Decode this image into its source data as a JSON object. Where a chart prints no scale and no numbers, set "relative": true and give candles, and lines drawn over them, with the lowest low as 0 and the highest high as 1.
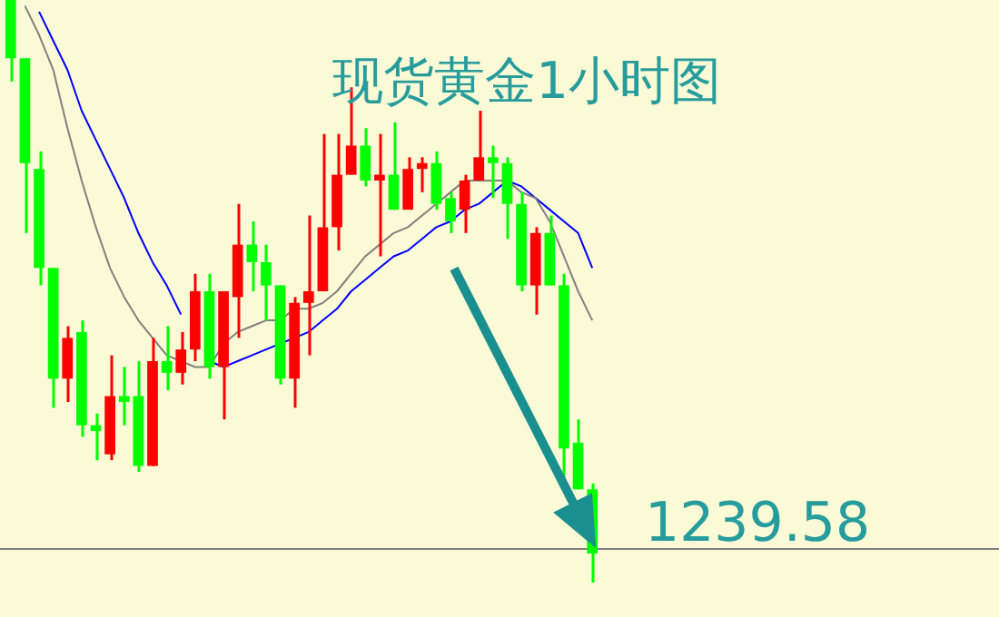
{
  "chart_data": {
    "type": "candlestick",
    "title": "现货黄金1小时图",
    "relative": true,
    "categories": [
      null,
      null,
      null,
      null,
      null,
      null,
      null,
      null,
      null,
      null,
      null,
      null,
      null,
      null,
      null,
      null,
      null,
      null,
      null,
      null,
      null,
      null,
      null,
      null,
      null,
      null,
      null,
      null,
      null,
      null,
      null,
      null,
      null,
      null,
      null,
      null,
      null,
      null,
      null,
      null,
      null,
      null
    ],
    "ohlc": [
      [
        1.0,
        1.0,
        0.86,
        0.9
      ],
      [
        0.9,
        0.9,
        0.6,
        0.72
      ],
      [
        0.71,
        0.74,
        0.51,
        0.54
      ],
      [
        0.54,
        0.54,
        0.3,
        0.35
      ],
      [
        0.35,
        0.44,
        0.31,
        0.42
      ],
      [
        0.43,
        0.45,
        0.25,
        0.27
      ],
      [
        0.27,
        0.29,
        0.21,
        0.26
      ],
      [
        0.22,
        0.39,
        0.21,
        0.32
      ],
      [
        0.32,
        0.37,
        0.27,
        0.31
      ],
      [
        0.32,
        0.38,
        0.19,
        0.2
      ],
      [
        0.2,
        0.42,
        0.2,
        0.38
      ],
      [
        0.38,
        0.44,
        0.33,
        0.36
      ],
      [
        0.36,
        0.43,
        0.34,
        0.4
      ],
      [
        0.4,
        0.53,
        0.38,
        0.5
      ],
      [
        0.5,
        0.53,
        0.35,
        0.37
      ],
      [
        0.37,
        0.5,
        0.28,
        0.5
      ],
      [
        0.49,
        0.65,
        0.42,
        0.58
      ],
      [
        0.58,
        0.62,
        0.5,
        0.55
      ],
      [
        0.55,
        0.58,
        0.45,
        0.51
      ],
      [
        0.51,
        0.51,
        0.34,
        0.35
      ],
      [
        0.35,
        0.49,
        0.3,
        0.48
      ],
      [
        0.48,
        0.63,
        0.39,
        0.5
      ],
      [
        0.5,
        0.77,
        0.5,
        0.61
      ],
      [
        0.61,
        0.77,
        0.57,
        0.7
      ],
      [
        0.7,
        0.85,
        0.7,
        0.75
      ],
      [
        0.75,
        0.78,
        0.68,
        0.69
      ],
      [
        0.69,
        0.77,
        0.56,
        0.7
      ],
      [
        0.7,
        0.79,
        0.64,
        0.64
      ],
      [
        0.64,
        0.73,
        0.64,
        0.71
      ],
      [
        0.71,
        0.73,
        0.67,
        0.72
      ],
      [
        0.72,
        0.74,
        0.64,
        0.65
      ],
      [
        0.66,
        0.67,
        0.6,
        0.62
      ],
      [
        0.64,
        0.7,
        0.6,
        0.69
      ],
      [
        0.69,
        0.81,
        0.69,
        0.73
      ],
      [
        0.73,
        0.75,
        0.66,
        0.72
      ],
      [
        0.72,
        0.73,
        0.59,
        0.65
      ],
      [
        0.65,
        0.67,
        0.5,
        0.51
      ],
      [
        0.51,
        0.61,
        0.46,
        0.6
      ],
      [
        0.6,
        0.63,
        0.51,
        0.51
      ],
      [
        0.51,
        0.53,
        0.18,
        0.23
      ],
      [
        0.24,
        0.28,
        0.16,
        0.16
      ],
      [
        0.16,
        0.17,
        0.0,
        0.05
      ]
    ],
    "colors": [
      "#00ff00",
      "#00ff00",
      "#00ff00",
      "#00ff00",
      "#ff0000",
      "#00ff00",
      "#00ff00",
      "#ff0000",
      "#00ff00",
      "#00ff00",
      "#ff0000",
      "#00ff00",
      "#ff0000",
      "#ff0000",
      "#00ff00",
      "#ff0000",
      "#ff0000",
      "#00ff00",
      "#00ff00",
      "#00ff00",
      "#ff0000",
      "#ff0000",
      "#ff0000",
      "#ff0000",
      "#ff0000",
      "#00ff00",
      "#ff0000",
      "#00ff00",
      "#ff0000",
      "#ff0000",
      "#00ff00",
      "#00ff00",
      "#ff0000",
      "#ff0000",
      "#00ff00",
      "#00ff00",
      "#00ff00",
      "#ff0000",
      "#00ff00",
      "#00ff00",
      "#00ff00",
      "#00ff00"
    ],
    "series": [
      {
        "type": "line",
        "color": "#808080",
        "values": [
          null,
          0.99,
          0.94,
          0.88,
          0.78,
          0.69,
          0.61,
          0.54,
          0.49,
          0.45,
          0.42,
          0.39,
          0.38,
          0.37,
          0.37,
          0.41,
          0.43,
          0.44,
          0.45,
          0.45,
          0.47,
          0.47,
          0.48,
          0.5,
          0.53,
          0.56,
          0.58,
          0.6,
          0.61,
          0.63,
          0.65,
          0.67,
          0.69,
          0.69,
          0.69,
          0.69,
          0.67,
          0.66,
          0.62,
          0.56,
          0.5,
          0.45
        ]
      },
      {
        "type": "line",
        "color": "#0000ff",
        "values": [
          null,
          null,
          0.98,
          0.93,
          0.88,
          0.81,
          0.76,
          0.71,
          0.66,
          0.6,
          0.55,
          0.51,
          0.46,
          null,
          0.38,
          0.37,
          0.38,
          0.39,
          0.4,
          0.41,
          0.42,
          0.43,
          0.45,
          0.47,
          0.5,
          0.52,
          0.54,
          0.56,
          0.57,
          0.59,
          0.61,
          0.62,
          0.64,
          0.65,
          0.67,
          0.69,
          0.68,
          0.66,
          0.64,
          0.62,
          0.6,
          0.54
        ]
      }
    ],
    "ref_lines": [
      {
        "axis": "y",
        "value": 0.06,
        "color": "#808080"
      }
    ],
    "annotations": [
      "1239.58"
    ],
    "marker": "none"
  }
}
